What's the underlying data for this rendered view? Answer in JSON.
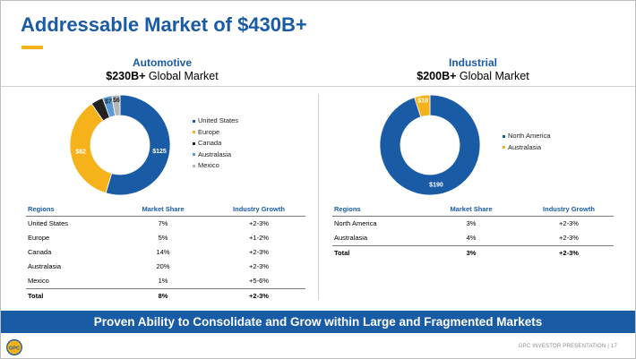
{
  "title": "Addressable Market of $430B+",
  "colors": {
    "brand_blue": "#1a5ba6",
    "gold": "#f6b21b",
    "black": "#222222",
    "light_blue": "#5b9bd5",
    "gray": "#b7b7b7"
  },
  "automotive": {
    "name": "Automotive",
    "market_bold": "$230B+",
    "market_rest": " Global Market",
    "table": {
      "headers": [
        "Regions",
        "Market Share",
        "Industry Growth"
      ],
      "rows": [
        [
          "United States",
          "7%",
          "+2-3%"
        ],
        [
          "Europe",
          "5%",
          "+1-2%"
        ],
        [
          "Canada",
          "14%",
          "+2-3%"
        ],
        [
          "Australasia",
          "20%",
          "+2-3%"
        ],
        [
          "Mexico",
          "1%",
          "+5-6%"
        ]
      ],
      "total": [
        "Total",
        "8%",
        "+2-3%"
      ]
    }
  },
  "industrial": {
    "name": "Industrial",
    "market_bold": "$200B+",
    "market_rest": " Global Market",
    "table": {
      "headers": [
        "Regions",
        "Market Share",
        "Industry Growth"
      ],
      "rows": [
        [
          "North America",
          "3%",
          "+2-3%"
        ],
        [
          "Australasia",
          "4%",
          "+2-3%"
        ]
      ],
      "total": [
        "Total",
        "3%",
        "+2-3%"
      ]
    }
  },
  "chart_data": [
    {
      "type": "pie",
      "donut": true,
      "title": "Automotive",
      "legend": "right",
      "categories": [
        "United States",
        "Europe",
        "Canada",
        "Australasia",
        "Mexico"
      ],
      "values": [
        125,
        82,
        9,
        7,
        6
      ],
      "labels": [
        "$125",
        "$82",
        "$9",
        "$7",
        "$6"
      ],
      "colors": [
        "#1a5ba6",
        "#f6b21b",
        "#222222",
        "#5b9bd5",
        "#b7b7b7"
      ]
    },
    {
      "type": "pie",
      "donut": true,
      "title": "Industrial",
      "legend": "right",
      "categories": [
        "North America",
        "Australasia"
      ],
      "values": [
        190,
        10
      ],
      "labels": [
        "$190",
        "$10"
      ],
      "colors": [
        "#1a5ba6",
        "#f6b21b"
      ]
    }
  ],
  "banner": "Proven Ability to Consolidate and Grow within Large and Fragmented Markets",
  "logo_text": "GPC",
  "footer": "GPC INVESTOR PRESENTATION  |  17"
}
